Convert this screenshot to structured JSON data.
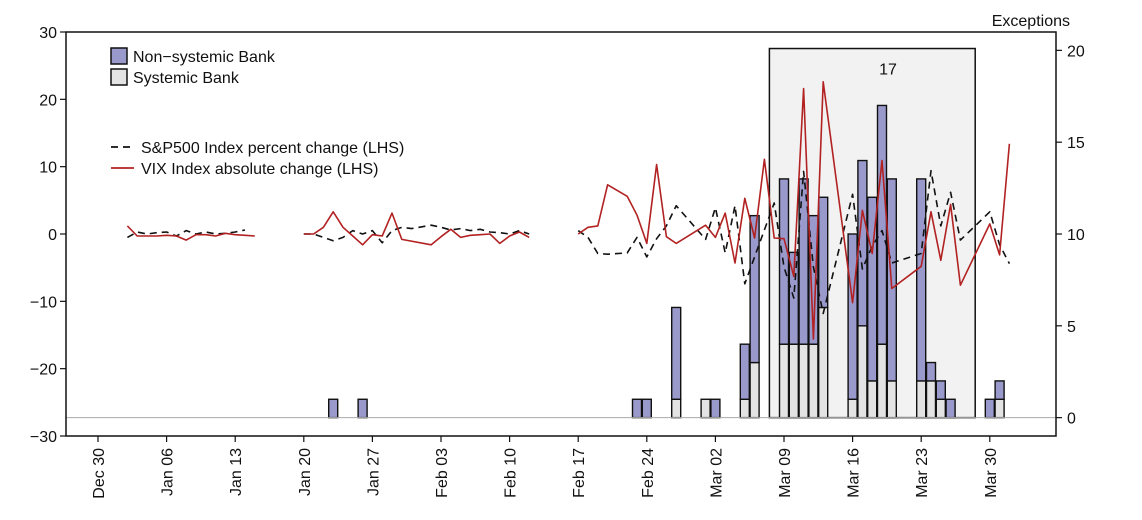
{
  "chart_data": {
    "type": "bar",
    "right_axis_title": "Exceptions",
    "left_ylim": [
      -30,
      30
    ],
    "left_ticks": [
      30,
      20,
      10,
      0,
      -10,
      -20,
      -30
    ],
    "left_tick_labels": [
      "30",
      "20",
      "10",
      "0",
      "−10",
      "−20",
      "−30"
    ],
    "right_ylim": [
      -1,
      21
    ],
    "right_ticks": [
      20,
      15,
      10,
      5,
      0
    ],
    "right_tick_labels": [
      "20",
      "15",
      "10",
      "5",
      "0"
    ],
    "x_tick_labels": [
      "Dec 30",
      "Jan 06",
      "Jan 13",
      "Jan 20",
      "Jan 27",
      "Feb 03",
      "Feb 10",
      "Feb 17",
      "Feb 24",
      "Mar 02",
      "Mar 09",
      "Mar 16",
      "Mar 23",
      "Mar 30"
    ],
    "grid": false,
    "legend_placement": "top-left",
    "bar_legend": [
      {
        "name": "Non−systemic Bank",
        "color": "#9999cc"
      },
      {
        "name": "Systemic Bank",
        "color": "#e3e3e3"
      }
    ],
    "line_legend": [
      {
        "name": "S&P500 Index percent change (LHS)",
        "color": "#111111",
        "style": "dashed"
      },
      {
        "name": "VIX Index absolute change (LHS)",
        "color": "#b22222",
        "style": "solid"
      }
    ],
    "annotation": "17",
    "highlight_window": {
      "from_day": 68,
      "to_day": 89
    },
    "colors": {
      "nonsystemic": "#9999cc",
      "systemic": "#e3e3e3",
      "sp500": "#111111",
      "vix": "#b22222",
      "window": "#f2f2f2"
    },
    "bars": [
      {
        "day": 24,
        "systemic": 0,
        "nonsystemic": 1
      },
      {
        "day": 27,
        "systemic": 0,
        "nonsystemic": 1
      },
      {
        "day": 55,
        "systemic": 0,
        "nonsystemic": 1
      },
      {
        "day": 56,
        "systemic": 0,
        "nonsystemic": 1
      },
      {
        "day": 59,
        "systemic": 1,
        "nonsystemic": 5
      },
      {
        "day": 62,
        "systemic": 1,
        "nonsystemic": 0
      },
      {
        "day": 63,
        "systemic": 0,
        "nonsystemic": 1
      },
      {
        "day": 66,
        "systemic": 1,
        "nonsystemic": 3
      },
      {
        "day": 67,
        "systemic": 3,
        "nonsystemic": 8
      },
      {
        "day": 70,
        "systemic": 4,
        "nonsystemic": 9
      },
      {
        "day": 71,
        "systemic": 4,
        "nonsystemic": 5
      },
      {
        "day": 72,
        "systemic": 4,
        "nonsystemic": 9
      },
      {
        "day": 73,
        "systemic": 4,
        "nonsystemic": 7
      },
      {
        "day": 74,
        "systemic": 6,
        "nonsystemic": 6
      },
      {
        "day": 77,
        "systemic": 1,
        "nonsystemic": 9
      },
      {
        "day": 78,
        "systemic": 5,
        "nonsystemic": 9
      },
      {
        "day": 79,
        "systemic": 2,
        "nonsystemic": 10
      },
      {
        "day": 80,
        "systemic": 4,
        "nonsystemic": 13
      },
      {
        "day": 81,
        "systemic": 2,
        "nonsystemic": 11
      },
      {
        "day": 84,
        "systemic": 2,
        "nonsystemic": 11
      },
      {
        "day": 85,
        "systemic": 2,
        "nonsystemic": 1
      },
      {
        "day": 86,
        "systemic": 1,
        "nonsystemic": 1
      },
      {
        "day": 87,
        "systemic": 0,
        "nonsystemic": 1
      },
      {
        "day": 91,
        "systemic": 0,
        "nonsystemic": 1
      },
      {
        "day": 92,
        "systemic": 1,
        "nonsystemic": 1
      }
    ],
    "series": [
      {
        "name": "S&P500 Index percent change (LHS)",
        "segments": [
          [
            [
              3,
              -0.5
            ],
            [
              4,
              0.3
            ],
            [
              5,
              0
            ],
            [
              6,
              0.2
            ],
            [
              7,
              0.3
            ],
            [
              8,
              -0.3
            ],
            [
              9,
              0.5
            ],
            [
              10,
              0
            ],
            [
              11,
              0.3
            ],
            [
              12,
              0
            ],
            [
              13,
              0.1
            ],
            [
              14,
              0.3
            ],
            [
              15,
              0.6
            ]
          ],
          [
            [
              21,
              0
            ],
            [
              22,
              0
            ],
            [
              23,
              -0.5
            ],
            [
              24,
              -1
            ],
            [
              25,
              -0.5
            ],
            [
              26,
              0.5
            ],
            [
              27,
              0
            ],
            [
              28,
              0.5
            ],
            [
              29,
              -1.3
            ],
            [
              30,
              0.5
            ],
            [
              31,
              1
            ],
            [
              32,
              0.8
            ],
            [
              34,
              1.3
            ],
            [
              35,
              1
            ],
            [
              36,
              0.6
            ],
            [
              37,
              0.8
            ],
            [
              38,
              0.5
            ],
            [
              39,
              0.7
            ],
            [
              40,
              0.3
            ],
            [
              41,
              0.2
            ],
            [
              42,
              0
            ],
            [
              43,
              0.5
            ],
            [
              44,
              0
            ]
          ],
          [
            [
              49,
              0.5
            ],
            [
              50,
              -0.5
            ],
            [
              51,
              -2.9
            ],
            [
              52,
              -3
            ],
            [
              54,
              -2.8
            ],
            [
              55,
              -0.5
            ],
            [
              56,
              -3.4
            ],
            [
              57,
              -0.7
            ],
            [
              58,
              1.2
            ],
            [
              59,
              4.2
            ],
            [
              62,
              -0.8
            ],
            [
              63,
              3.9
            ],
            [
              64,
              -2.8
            ],
            [
              65,
              4.2
            ],
            [
              66,
              -7.4
            ],
            [
              69,
              4.6
            ],
            [
              70,
              -4.9
            ],
            [
              71,
              -9.5
            ],
            [
              72,
              9.3
            ],
            [
              73,
              -4.9
            ],
            [
              74,
              -11.8
            ],
            [
              77,
              5.9
            ],
            [
              78,
              -5.2
            ],
            [
              79,
              -1.8
            ],
            [
              80,
              0.5
            ],
            [
              81,
              -4.3
            ],
            [
              84,
              -2.9
            ],
            [
              85,
              9.4
            ],
            [
              86,
              1.2
            ],
            [
              87,
              6.2
            ],
            [
              88,
              -0.9
            ],
            [
              91,
              3.3
            ],
            [
              92,
              -1.6
            ],
            [
              93,
              -4.4
            ]
          ]
        ]
      },
      {
        "name": "VIX Index absolute change (LHS)",
        "segments": [
          [
            [
              3,
              1.2
            ],
            [
              4,
              -0.3
            ],
            [
              5,
              -0.3
            ],
            [
              6,
              -0.3
            ],
            [
              7,
              -0.2
            ],
            [
              8,
              -0.3
            ],
            [
              9,
              -0.9
            ],
            [
              10,
              -0.1
            ],
            [
              11,
              -0.1
            ],
            [
              12,
              -0.3
            ],
            [
              13,
              0.1
            ],
            [
              14,
              -0.1
            ],
            [
              15,
              -0.2
            ],
            [
              16,
              -0.3
            ]
          ],
          [
            [
              21,
              0
            ],
            [
              22,
              0
            ],
            [
              23,
              1
            ],
            [
              24,
              3.3
            ],
            [
              25,
              1
            ],
            [
              26,
              -0.3
            ],
            [
              27,
              -1.6
            ],
            [
              28,
              -0.1
            ],
            [
              29,
              -0.3
            ],
            [
              30,
              3.1
            ],
            [
              31,
              -0.8
            ],
            [
              34,
              -1.6
            ],
            [
              35,
              -0.4
            ],
            [
              36,
              0.7
            ],
            [
              37,
              -0.5
            ],
            [
              38,
              -0.2
            ],
            [
              39,
              -0.1
            ],
            [
              40,
              0
            ],
            [
              41,
              -1.4
            ],
            [
              42,
              -0.3
            ],
            [
              43,
              0.3
            ],
            [
              44,
              -0.5
            ]
          ],
          [
            [
              49,
              0
            ],
            [
              50,
              1
            ],
            [
              51,
              1.2
            ],
            [
              52,
              7.3
            ],
            [
              54,
              5.6
            ],
            [
              55,
              2.8
            ],
            [
              56,
              -1.4
            ],
            [
              57,
              10.3
            ],
            [
              58,
              -0.4
            ],
            [
              59,
              -1.4
            ],
            [
              62,
              1.3
            ],
            [
              63,
              -0.5
            ],
            [
              64,
              3.1
            ],
            [
              65,
              -4.3
            ],
            [
              66,
              5.3
            ],
            [
              67,
              -0.6
            ],
            [
              68,
              11.1
            ],
            [
              69,
              -0.6
            ],
            [
              70,
              -0.7
            ],
            [
              71,
              -6.3
            ],
            [
              72,
              21.6
            ],
            [
              73,
              -15.6
            ],
            [
              74,
              22.6
            ],
            [
              77,
              -10.2
            ],
            [
              78,
              3.5
            ],
            [
              79,
              -2.9
            ],
            [
              80,
              10.9
            ],
            [
              81,
              -8.1
            ],
            [
              84,
              -4.8
            ],
            [
              85,
              3.3
            ],
            [
              86,
              -3.9
            ],
            [
              87,
              4.4
            ],
            [
              88,
              -7.6
            ],
            [
              91,
              1.5
            ],
            [
              92,
              -3.1
            ],
            [
              93,
              13.4
            ]
          ]
        ]
      }
    ]
  }
}
